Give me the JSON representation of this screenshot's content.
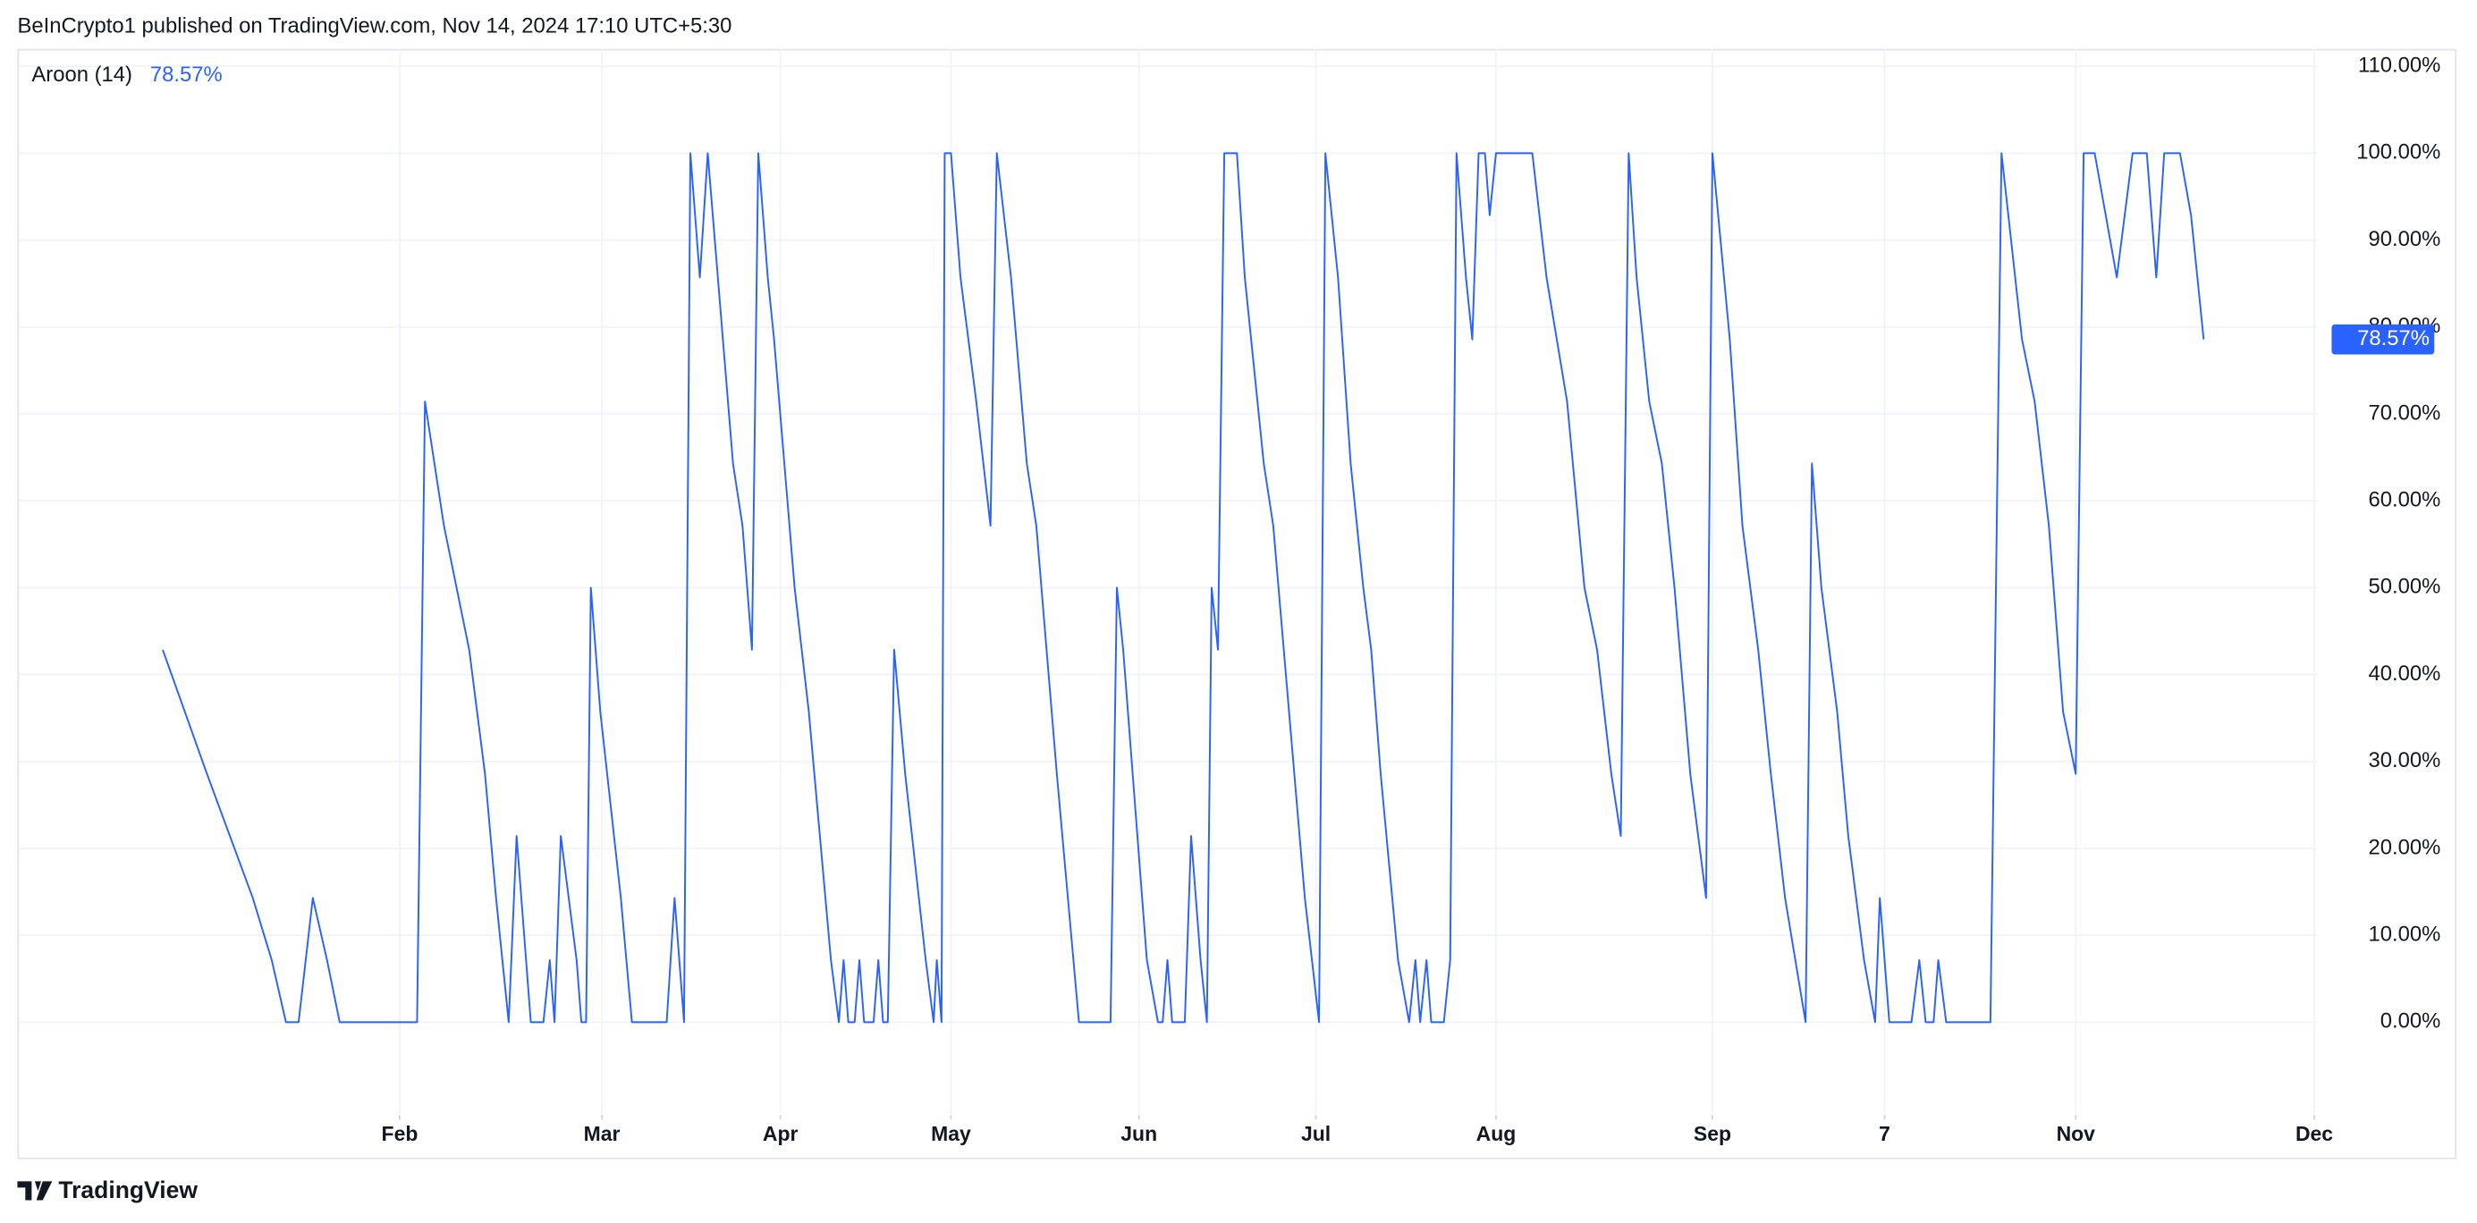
{
  "header": "BeInCrypto1 published on TradingView.com, Nov 14, 2024 17:10 UTC+5:30",
  "footer": "TradingView",
  "chart_data": {
    "type": "line",
    "grid": true,
    "x": [
      24.5,
      31.5,
      38.75,
      41.75,
      44,
      46,
      48.25,
      50.5,
      52.5,
      64.75,
      66,
      69,
      73,
      75.5,
      77.25,
      79.25,
      80.5,
      82.75,
      84.75,
      85.75,
      86.5,
      87.5,
      90,
      90.75,
      91.5,
      92.25,
      93.75,
      97,
      98.75,
      104.25,
      105.5,
      107,
      108,
      109.5,
      110.75,
      114.75,
      116.25,
      117.75,
      118.75,
      120.25,
      121.25,
      124.5,
      126.75,
      130.25,
      131.5,
      132.25,
      133,
      134,
      134.75,
      135.5,
      137,
      137.75,
      138.5,
      139.25,
      140.25,
      142,
      145.25,
      146.5,
      147,
      147.75,
      148.25,
      149.25,
      150.75,
      153.25,
      155.5,
      156.5,
      158.75,
      161.25,
      162.75,
      166,
      167.75,
      169.5,
      174.5,
      175.5,
      176.5,
      178.75,
      180.25,
      182,
      182.75,
      183.5,
      184.25,
      186.25,
      187.25,
      188.75,
      189.75,
      190.5,
      191.5,
      192.5,
      194.5,
      195.75,
      198.75,
      200.25,
      202.75,
      205.25,
      207.5,
      208.5,
      210.5,
      212.5,
      214.5,
      215.75,
      217.25,
      220,
      221.75,
      222.75,
      223.5,
      224.5,
      225.25,
      227.25,
      228.25,
      229.25,
      230.75,
      231.75,
      232.75,
      233.75,
      234.5,
      235.5,
      241.25,
      243.5,
      246.75,
      249.5,
      251.5,
      253.75,
      255.25,
      256.5,
      257.75,
      259.75,
      261.75,
      263.75,
      266.25,
      268.75,
      269.75,
      272.5,
      274.5,
      277,
      279,
      281.25,
      284.5,
      285.5,
      287,
      289.5,
      291.25,
      293.75,
      295.5,
      296.25,
      297.75,
      299.25,
      301.25,
      302.5,
      303.5,
      304.75,
      305.5,
      306.75,
      313.75,
      315.5,
      318.75,
      320.75,
      323,
      325.25,
      327.25,
      328.5,
      330.25,
      333.75,
      336.25,
      338.5,
      340,
      341.25,
      343.75,
      345.5,
      347.5
    ],
    "series": [
      {
        "name": "Aroon (14)",
        "color": "#2962ff",
        "last_value_label": "78.57%",
        "values": [
          42.86,
          28.57,
          14.29,
          7.14,
          0,
          0,
          14.29,
          7.14,
          0,
          0,
          71.43,
          57.14,
          42.86,
          28.57,
          14.29,
          0,
          21.43,
          0,
          0,
          7.14,
          0,
          21.43,
          7.14,
          0,
          0,
          50,
          35.71,
          14.29,
          0,
          0,
          14.29,
          0,
          100,
          85.71,
          100,
          64.29,
          57.14,
          42.86,
          100,
          85.71,
          78.57,
          50,
          35.71,
          7.14,
          0,
          7.14,
          0,
          0,
          7.14,
          0,
          0,
          7.14,
          0,
          0,
          42.86,
          28.57,
          7.14,
          0,
          7.14,
          0,
          100,
          100,
          85.71,
          71.43,
          57.14,
          100,
          85.71,
          64.29,
          57.14,
          28.57,
          14.29,
          0,
          0,
          50,
          42.86,
          21.43,
          7.14,
          0,
          0,
          7.14,
          0,
          0,
          21.43,
          7.14,
          0,
          50,
          42.86,
          100,
          100,
          85.71,
          64.29,
          57.14,
          35.71,
          14.29,
          0,
          100,
          85.71,
          64.29,
          50,
          42.86,
          28.57,
          7.14,
          0,
          7.14,
          0,
          7.14,
          0,
          0,
          7.14,
          100,
          85.71,
          78.57,
          100,
          100,
          92.86,
          100,
          100,
          85.71,
          71.43,
          50,
          42.86,
          28.57,
          21.43,
          100,
          85.71,
          71.43,
          64.29,
          50,
          28.57,
          14.29,
          100,
          78.57,
          57.14,
          42.86,
          28.57,
          14.29,
          0,
          64.29,
          50,
          35.71,
          21.43,
          7.14,
          0,
          14.29,
          0,
          0,
          0,
          7.14,
          0,
          0,
          7.14,
          0,
          0,
          100,
          78.57,
          71.43,
          57.14,
          35.71,
          28.57,
          100,
          100,
          85.71,
          100,
          100,
          85.71,
          100,
          100,
          92.86,
          78.57
        ]
      }
    ],
    "xlim": [
      1.75,
      365.5
    ],
    "xticks": [
      {
        "value": 62,
        "label": "Feb"
      },
      {
        "value": 94,
        "label": "Mar"
      },
      {
        "value": 122.25,
        "label": "Apr"
      },
      {
        "value": 149.25,
        "label": "May"
      },
      {
        "value": 179,
        "label": "Jun"
      },
      {
        "value": 207,
        "label": "Jul"
      },
      {
        "value": 235.5,
        "label": "Aug"
      },
      {
        "value": 269.75,
        "label": "Sep"
      },
      {
        "value": 297,
        "label": "7"
      },
      {
        "value": 327.25,
        "label": "Nov"
      },
      {
        "value": 365,
        "label": "Dec"
      }
    ],
    "ylim": [
      -10.5,
      112
    ],
    "yticks": [
      {
        "value": 0,
        "label": "0.00%"
      },
      {
        "value": 10,
        "label": "10.00%"
      },
      {
        "value": 20,
        "label": "20.00%"
      },
      {
        "value": 30,
        "label": "30.00%"
      },
      {
        "value": 40,
        "label": "40.00%"
      },
      {
        "value": 50,
        "label": "50.00%"
      },
      {
        "value": 60,
        "label": "60.00%"
      },
      {
        "value": 70,
        "label": "70.00%"
      },
      {
        "value": 80,
        "label": "80.00%"
      },
      {
        "value": 90,
        "label": "90.00%"
      },
      {
        "value": 100,
        "label": "100.00%"
      },
      {
        "value": 110,
        "label": "110.00%"
      }
    ]
  }
}
